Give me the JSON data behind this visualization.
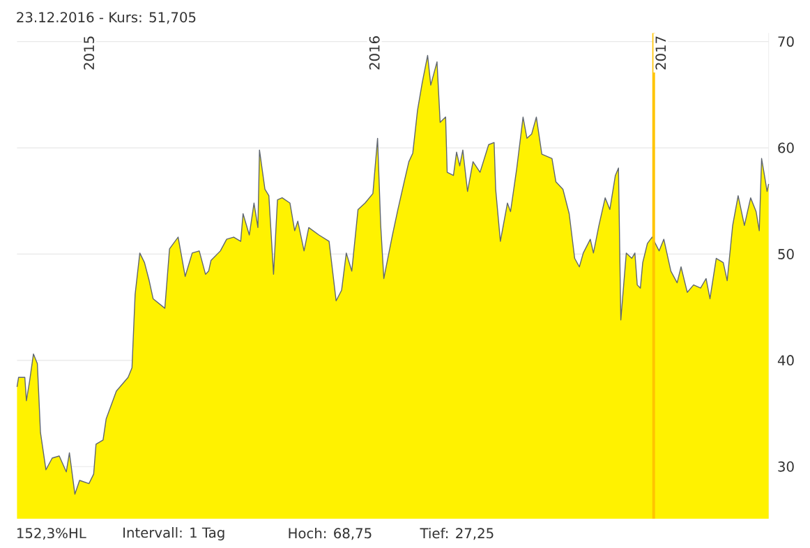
{
  "chart_data": {
    "type": "area",
    "title": "23.12.2016  -  Kurs: 51,705",
    "annotations": [
      "152,3%HL",
      "Intervall: 1 Tag",
      "Hoch:  68,75",
      "Tief:  27,25"
    ],
    "x": [
      "2014-10-01",
      "2014-10-03",
      "2014-10-11",
      "2014-10-13",
      "2014-10-17",
      "2014-10-22",
      "2014-10-27",
      "2014-10-31",
      "2014-11-07",
      "2014-11-15",
      "2014-11-24",
      "2014-12-03",
      "2014-12-07",
      "2014-12-14",
      "2014-12-20",
      "2015-01-01",
      "2015-01-07",
      "2015-01-10",
      "2015-01-19",
      "2015-01-23",
      "2015-02-05",
      "2015-02-20",
      "2015-02-25",
      "2015-03-01",
      "2015-03-07",
      "2015-03-13",
      "2015-03-19",
      "2015-03-24",
      "2015-04-08",
      "2015-04-14",
      "2015-04-25",
      "2015-05-04",
      "2015-05-13",
      "2015-05-22",
      "2015-05-30",
      "2015-06-03",
      "2015-06-06",
      "2015-06-18",
      "2015-06-26",
      "2015-07-05",
      "2015-07-14",
      "2015-07-17",
      "2015-07-25",
      "2015-07-31",
      "2015-08-05",
      "2015-08-07",
      "2015-08-14",
      "2015-08-19",
      "2015-08-25",
      "2015-08-30",
      "2015-09-05",
      "2015-09-15",
      "2015-09-21",
      "2015-09-25",
      "2015-10-03",
      "2015-10-09",
      "2015-10-22",
      "2015-11-04",
      "2015-11-13",
      "2015-11-20",
      "2015-11-26",
      "2015-12-03",
      "2015-12-11",
      "2015-12-20",
      "2015-12-30",
      "2016-01-05",
      "2016-01-09",
      "2016-01-13",
      "2016-01-24",
      "2016-01-31",
      "2016-02-08",
      "2016-02-14",
      "2016-02-19",
      "2016-02-25",
      "2016-03-02",
      "2016-03-09",
      "2016-03-13",
      "2016-03-21",
      "2016-03-25",
      "2016-04-01",
      "2016-04-03",
      "2016-04-11",
      "2016-04-15",
      "2016-04-19",
      "2016-04-23",
      "2016-04-29",
      "2016-05-06",
      "2016-05-15",
      "2016-05-26",
      "2016-06-02",
      "2016-06-04",
      "2016-06-10",
      "2016-06-19",
      "2016-06-23",
      "2016-07-01",
      "2016-07-09",
      "2016-07-14",
      "2016-07-20",
      "2016-07-26",
      "2016-08-02",
      "2016-08-15",
      "2016-08-20",
      "2016-08-29",
      "2016-09-06",
      "2016-09-13",
      "2016-09-19",
      "2016-09-24",
      "2016-10-03",
      "2016-10-07",
      "2016-10-14",
      "2016-10-22",
      "2016-10-28",
      "2016-11-04",
      "2016-11-08",
      "2016-11-11",
      "2016-11-18",
      "2016-11-25",
      "2016-11-29",
      "2016-12-02",
      "2016-12-06",
      "2016-12-09",
      "2016-12-15",
      "2016-12-21",
      "2016-12-30",
      "2017-01-05",
      "2017-01-14",
      "2017-01-22",
      "2017-01-27",
      "2017-02-04",
      "2017-02-12",
      "2017-02-21",
      "2017-02-28",
      "2017-03-05",
      "2017-03-13",
      "2017-03-22",
      "2017-03-27",
      "2017-04-03",
      "2017-04-10",
      "2017-04-18",
      "2017-04-26",
      "2017-05-03",
      "2017-05-07",
      "2017-05-10",
      "2017-05-13",
      "2017-05-17",
      "2017-05-19"
    ],
    "series": [
      {
        "color": "#fff200",
        "values": [
          37.5,
          38.4,
          38.4,
          36.2,
          38.0,
          40.6,
          39.7,
          33.2,
          29.7,
          30.8,
          31.0,
          29.5,
          31.3,
          27.4,
          28.7,
          28.4,
          29.3,
          32.1,
          32.5,
          34.5,
          37.1,
          38.4,
          39.3,
          46.2,
          50.1,
          49.2,
          47.5,
          45.8,
          44.9,
          50.5,
          51.6,
          47.9,
          50.1,
          50.3,
          48.1,
          48.4,
          49.4,
          50.3,
          51.4,
          51.6,
          51.2,
          53.8,
          51.8,
          54.8,
          52.5,
          59.8,
          56.1,
          55.5,
          48.1,
          55.1,
          55.3,
          54.8,
          52.2,
          53.1,
          50.3,
          52.5,
          51.8,
          51.2,
          45.6,
          46.6,
          50.1,
          48.4,
          54.2,
          54.8,
          55.7,
          60.9,
          52.7,
          47.7,
          51.8,
          54.2,
          56.8,
          58.7,
          59.5,
          63.5,
          66.1,
          68.7,
          65.9,
          68.1,
          62.4,
          62.9,
          57.7,
          57.4,
          59.6,
          58.3,
          59.8,
          55.9,
          58.7,
          57.7,
          60.3,
          60.5,
          56.1,
          51.2,
          54.8,
          54.0,
          58.1,
          62.9,
          60.9,
          61.3,
          62.9,
          59.4,
          59.0,
          56.8,
          56.1,
          53.8,
          49.6,
          48.8,
          50.1,
          51.4,
          50.1,
          52.7,
          55.3,
          54.2,
          57.4,
          58.1,
          43.8,
          50.1,
          49.6,
          50.1,
          47.1,
          46.8,
          49.2,
          51.0,
          51.6,
          50.3,
          51.4,
          48.4,
          47.3,
          48.8,
          46.4,
          47.1,
          46.8,
          47.7,
          45.8,
          49.6,
          49.2,
          47.5,
          52.7,
          55.5,
          52.7,
          55.3,
          54.0,
          52.2,
          59.0,
          57.7,
          55.9,
          56.6
        ]
      }
    ],
    "xlim": [
      "2014-10-01",
      "2017-05-19"
    ],
    "xticks": [
      {
        "value": "2015-01-01",
        "label": "2015"
      },
      {
        "value": "2016-01-01",
        "label": "2016"
      },
      {
        "value": "2017-01-01",
        "label": "2017"
      }
    ],
    "ylim": [
      25.1,
      70.8
    ],
    "yticks": [
      30,
      40,
      50,
      60,
      70
    ],
    "grid": true,
    "ref_lines": [
      {
        "axis": "x",
        "value": "2016-12-23",
        "color": "#ffc400"
      }
    ]
  }
}
